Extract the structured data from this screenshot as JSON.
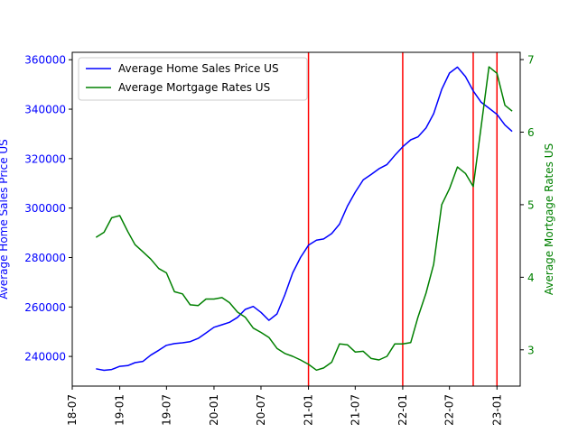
{
  "chart_data": {
    "type": "line",
    "x_axis": {
      "ticks": [
        "18-07",
        "19-01",
        "19-07",
        "20-01",
        "20-07",
        "21-01",
        "21-07",
        "22-01",
        "22-07",
        "23-01"
      ],
      "range": [
        "2018-07-01",
        "2023-04-01"
      ]
    },
    "y_left": {
      "label": "Average Home Sales Price US",
      "range": [
        228000,
        363000
      ],
      "ticks": [
        240000,
        260000,
        280000,
        300000,
        320000,
        340000,
        360000
      ],
      "color": "#0000ff"
    },
    "y_right": {
      "label": "Average Mortgage Rates US",
      "range": [
        2.5,
        7.1
      ],
      "ticks": [
        3,
        4,
        5,
        6,
        7
      ],
      "color": "#008000"
    },
    "legend": {
      "placement": "top-left",
      "entries": [
        "Average Home Sales Price US",
        "Average Mortgage Rates US"
      ]
    },
    "series": [
      {
        "name": "Average Home Sales Price US",
        "axis": "left",
        "color": "#0000ff",
        "points": [
          [
            "2018-10-01",
            235000
          ],
          [
            "2018-11-01",
            234400
          ],
          [
            "2018-12-01",
            234700
          ],
          [
            "2019-01-01",
            236000
          ],
          [
            "2019-02-01",
            236300
          ],
          [
            "2019-03-01",
            237500
          ],
          [
            "2019-04-01",
            238000
          ],
          [
            "2019-05-01",
            240500
          ],
          [
            "2019-06-01",
            242500
          ],
          [
            "2019-07-01",
            244500
          ],
          [
            "2019-08-01",
            245200
          ],
          [
            "2019-09-01",
            245500
          ],
          [
            "2019-10-01",
            246000
          ],
          [
            "2019-11-01",
            247300
          ],
          [
            "2019-12-01",
            249500
          ],
          [
            "2020-01-01",
            251800
          ],
          [
            "2020-02-01",
            252800
          ],
          [
            "2020-03-01",
            253800
          ],
          [
            "2020-04-01",
            255800
          ],
          [
            "2020-05-01",
            259000
          ],
          [
            "2020-06-01",
            260200
          ],
          [
            "2020-07-01",
            257800
          ],
          [
            "2020-08-01",
            254600
          ],
          [
            "2020-09-01",
            257200
          ],
          [
            "2020-10-01",
            264800
          ],
          [
            "2020-11-01",
            273800
          ],
          [
            "2020-12-01",
            280000
          ],
          [
            "2021-01-01",
            285000
          ],
          [
            "2021-02-01",
            287000
          ],
          [
            "2021-03-01",
            287500
          ],
          [
            "2021-04-01",
            289700
          ],
          [
            "2021-05-01",
            293500
          ],
          [
            "2021-06-01",
            300800
          ],
          [
            "2021-07-01",
            306400
          ],
          [
            "2021-08-01",
            311400
          ],
          [
            "2021-09-01",
            313600
          ],
          [
            "2021-10-01",
            315900
          ],
          [
            "2021-11-01",
            317600
          ],
          [
            "2021-12-01",
            321300
          ],
          [
            "2022-01-01",
            324800
          ],
          [
            "2022-02-01",
            327600
          ],
          [
            "2022-03-01",
            328800
          ],
          [
            "2022-04-01",
            332400
          ],
          [
            "2022-05-01",
            338200
          ],
          [
            "2022-06-01",
            348000
          ],
          [
            "2022-07-01",
            354600
          ],
          [
            "2022-08-01",
            357000
          ],
          [
            "2022-09-01",
            353200
          ],
          [
            "2022-10-01",
            347400
          ],
          [
            "2022-11-01",
            342800
          ],
          [
            "2022-12-01",
            340400
          ],
          [
            "2023-01-01",
            337900
          ],
          [
            "2023-02-01",
            333600
          ],
          [
            "2023-03-01",
            331000
          ]
        ]
      },
      {
        "name": "Average Mortgage Rates US",
        "axis": "right",
        "color": "#008000",
        "points": [
          [
            "2018-10-01",
            4.55
          ],
          [
            "2018-11-01",
            4.62
          ],
          [
            "2018-12-01",
            4.82
          ],
          [
            "2019-01-01",
            4.85
          ],
          [
            "2019-02-01",
            4.63
          ],
          [
            "2019-03-01",
            4.45
          ],
          [
            "2019-04-01",
            4.35
          ],
          [
            "2019-05-01",
            4.25
          ],
          [
            "2019-06-01",
            4.12
          ],
          [
            "2019-07-01",
            4.06
          ],
          [
            "2019-08-01",
            3.8
          ],
          [
            "2019-09-01",
            3.77
          ],
          [
            "2019-10-01",
            3.62
          ],
          [
            "2019-11-01",
            3.61
          ],
          [
            "2019-12-01",
            3.7
          ],
          [
            "2020-01-01",
            3.7
          ],
          [
            "2020-02-01",
            3.72
          ],
          [
            "2020-03-01",
            3.65
          ],
          [
            "2020-04-01",
            3.52
          ],
          [
            "2020-05-01",
            3.45
          ],
          [
            "2020-06-01",
            3.3
          ],
          [
            "2020-07-01",
            3.24
          ],
          [
            "2020-08-01",
            3.17
          ],
          [
            "2020-09-01",
            3.02
          ],
          [
            "2020-10-01",
            2.95
          ],
          [
            "2020-11-01",
            2.91
          ],
          [
            "2020-12-01",
            2.86
          ],
          [
            "2021-01-01",
            2.8
          ],
          [
            "2021-02-01",
            2.72
          ],
          [
            "2021-03-01",
            2.75
          ],
          [
            "2021-04-01",
            2.83
          ],
          [
            "2021-05-01",
            3.08
          ],
          [
            "2021-06-01",
            3.07
          ],
          [
            "2021-07-01",
            2.97
          ],
          [
            "2021-08-01",
            2.98
          ],
          [
            "2021-09-01",
            2.88
          ],
          [
            "2021-10-01",
            2.86
          ],
          [
            "2021-11-01",
            2.91
          ],
          [
            "2021-12-01",
            3.08
          ],
          [
            "2022-01-01",
            3.08
          ],
          [
            "2022-02-01",
            3.1
          ],
          [
            "2022-03-01",
            3.45
          ],
          [
            "2022-04-01",
            3.78
          ],
          [
            "2022-05-01",
            4.18
          ],
          [
            "2022-06-01",
            5.0
          ],
          [
            "2022-07-01",
            5.22
          ],
          [
            "2022-08-01",
            5.52
          ],
          [
            "2022-09-01",
            5.43
          ],
          [
            "2022-10-01",
            5.25
          ],
          [
            "2022-11-01",
            6.08
          ],
          [
            "2022-12-01",
            6.9
          ],
          [
            "2023-01-01",
            6.81
          ],
          [
            "2023-02-01",
            6.37
          ],
          [
            "2023-03-01",
            6.29
          ]
        ]
      }
    ],
    "vertical_markers": {
      "color": "#ff0000",
      "dates": [
        "2021-01-01",
        "2022-01-01",
        "2022-10-01",
        "2023-01-01"
      ]
    },
    "grid": false
  }
}
